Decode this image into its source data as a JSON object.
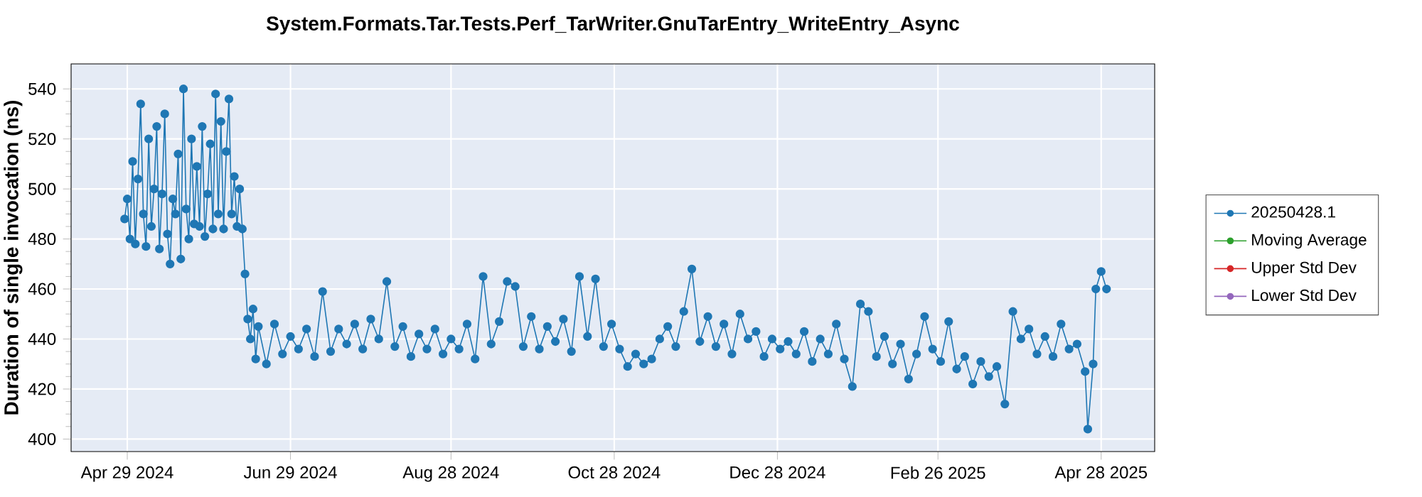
{
  "chart_data": {
    "type": "line",
    "title": "System.Formats.Tar.Tests.Perf_TarWriter.GnuTarEntry_WriteEntry_Async",
    "ylabel": "Duration of single invocation (ns)",
    "x": [
      "2024-04-28",
      "2024-04-29",
      "2024-04-30",
      "2024-05-01",
      "2024-05-02",
      "2024-05-03",
      "2024-05-04",
      "2024-05-05",
      "2024-05-06",
      "2024-05-07",
      "2024-05-08",
      "2024-05-09",
      "2024-05-10",
      "2024-05-11",
      "2024-05-12",
      "2024-05-13",
      "2024-05-14",
      "2024-05-15",
      "2024-05-16",
      "2024-05-17",
      "2024-05-18",
      "2024-05-19",
      "2024-05-20",
      "2024-05-21",
      "2024-05-22",
      "2024-05-23",
      "2024-05-24",
      "2024-05-25",
      "2024-05-26",
      "2024-05-27",
      "2024-05-28",
      "2024-05-29",
      "2024-05-30",
      "2024-05-31",
      "2024-06-01",
      "2024-06-02",
      "2024-06-03",
      "2024-06-04",
      "2024-06-05",
      "2024-06-06",
      "2024-06-07",
      "2024-06-08",
      "2024-06-09",
      "2024-06-10",
      "2024-06-11",
      "2024-06-12",
      "2024-06-13",
      "2024-06-14",
      "2024-06-15",
      "2024-06-16",
      "2024-06-17",
      "2024-06-20",
      "2024-06-23",
      "2024-06-26",
      "2024-06-29",
      "2024-07-02",
      "2024-07-05",
      "2024-07-08",
      "2024-07-11",
      "2024-07-14",
      "2024-07-17",
      "2024-07-20",
      "2024-07-23",
      "2024-07-26",
      "2024-07-29",
      "2024-08-01",
      "2024-08-04",
      "2024-08-07",
      "2024-08-10",
      "2024-08-13",
      "2024-08-16",
      "2024-08-19",
      "2024-08-22",
      "2024-08-25",
      "2024-08-28",
      "2024-08-31",
      "2024-09-03",
      "2024-09-06",
      "2024-09-09",
      "2024-09-12",
      "2024-09-15",
      "2024-09-18",
      "2024-09-21",
      "2024-09-24",
      "2024-09-27",
      "2024-09-30",
      "2024-10-03",
      "2024-10-06",
      "2024-10-09",
      "2024-10-12",
      "2024-10-15",
      "2024-10-18",
      "2024-10-21",
      "2024-10-24",
      "2024-10-27",
      "2024-10-30",
      "2024-11-02",
      "2024-11-05",
      "2024-11-08",
      "2024-11-11",
      "2024-11-14",
      "2024-11-17",
      "2024-11-20",
      "2024-11-23",
      "2024-11-26",
      "2024-11-29",
      "2024-12-02",
      "2024-12-05",
      "2024-12-08",
      "2024-12-11",
      "2024-12-14",
      "2024-12-17",
      "2024-12-20",
      "2024-12-23",
      "2024-12-26",
      "2024-12-29",
      "2025-01-01",
      "2025-01-04",
      "2025-01-07",
      "2025-01-10",
      "2025-01-13",
      "2025-01-16",
      "2025-01-19",
      "2025-01-22",
      "2025-01-25",
      "2025-01-28",
      "2025-01-31",
      "2025-02-03",
      "2025-02-06",
      "2025-02-09",
      "2025-02-12",
      "2025-02-15",
      "2025-02-18",
      "2025-02-21",
      "2025-02-24",
      "2025-02-27",
      "2025-03-02",
      "2025-03-05",
      "2025-03-08",
      "2025-03-11",
      "2025-03-14",
      "2025-03-17",
      "2025-03-20",
      "2025-03-23",
      "2025-03-26",
      "2025-03-29",
      "2025-04-01",
      "2025-04-04",
      "2025-04-07",
      "2025-04-10",
      "2025-04-13",
      "2025-04-16",
      "2025-04-19",
      "2025-04-22",
      "2025-04-23",
      "2025-04-25",
      "2025-04-26",
      "2025-04-28",
      "2025-04-30"
    ],
    "series": [
      {
        "name": "20250428.1",
        "color": "#1f77b4",
        "values": [
          488,
          496,
          480,
          511,
          478,
          504,
          534,
          490,
          477,
          520,
          485,
          500,
          525,
          476,
          498,
          530,
          482,
          470,
          496,
          490,
          514,
          472,
          540,
          492,
          480,
          520,
          486,
          509,
          485,
          525,
          481,
          498,
          518,
          484,
          538,
          490,
          527,
          484,
          515,
          536,
          490,
          505,
          485,
          500,
          484,
          466,
          448,
          440,
          452,
          432,
          445,
          430,
          446,
          434,
          441,
          436,
          444,
          433,
          459,
          435,
          444,
          438,
          446,
          436,
          448,
          440,
          463,
          437,
          445,
          433,
          442,
          436,
          444,
          434,
          440,
          436,
          446,
          432,
          465,
          438,
          447,
          463,
          461,
          437,
          449,
          436,
          445,
          439,
          448,
          435,
          465,
          441,
          464,
          437,
          446,
          436,
          429,
          434,
          430,
          432,
          440,
          445,
          437,
          451,
          468,
          439,
          449,
          437,
          446,
          434,
          450,
          440,
          443,
          433,
          440,
          436,
          439,
          434,
          443,
          431,
          440,
          434,
          446,
          432,
          421,
          454,
          451,
          433,
          441,
          430,
          438,
          424,
          434,
          449,
          436,
          431,
          447,
          428,
          433,
          422,
          431,
          425,
          429,
          414,
          451,
          440,
          444,
          434,
          441,
          433,
          446,
          436,
          438,
          427,
          404,
          430,
          460,
          467,
          460
        ]
      },
      {
        "name": "Moving Average",
        "color": "#2ca02c",
        "values": [
          null,
          null,
          null,
          null,
          null,
          null,
          null,
          null,
          null,
          null,
          null,
          null,
          null,
          null,
          null,
          null,
          null,
          null,
          null,
          null,
          null,
          null,
          null,
          null,
          null,
          null,
          null,
          null,
          null,
          null,
          null,
          null,
          null,
          null,
          null,
          null,
          null,
          null,
          null,
          null,
          null,
          null,
          null,
          null,
          null,
          null,
          null,
          null,
          null,
          null,
          null,
          null,
          null,
          null,
          null,
          null,
          null,
          null,
          null,
          null,
          null,
          null,
          null,
          null,
          null,
          null,
          null,
          null,
          null,
          null,
          null,
          null,
          null,
          null,
          null,
          null,
          null,
          null,
          null,
          null,
          null,
          null,
          null,
          null,
          null,
          null,
          null,
          null,
          null,
          null,
          null,
          null,
          null,
          null,
          null,
          null,
          null,
          null,
          null,
          null,
          null,
          null,
          null,
          null,
          null,
          null,
          null,
          null,
          null,
          null,
          null,
          null,
          null,
          null,
          null,
          null,
          null,
          null,
          null,
          null,
          null,
          null,
          null,
          null,
          null,
          null,
          null,
          null,
          null,
          null,
          null,
          null,
          null,
          null,
          null,
          null,
          null,
          null,
          null,
          null,
          null,
          null,
          null,
          null,
          null,
          null,
          null,
          null,
          null,
          null,
          null,
          null,
          null,
          null,
          null,
          null,
          null,
          null,
          null
        ]
      },
      {
        "name": "Upper Std Dev",
        "color": "#d62728",
        "values": [
          null,
          null,
          null,
          null,
          null,
          null,
          null,
          null,
          null,
          null,
          null,
          null,
          null,
          null,
          null,
          null,
          null,
          null,
          null,
          null,
          null,
          null,
          null,
          null,
          null,
          null,
          null,
          null,
          null,
          null,
          null,
          null,
          null,
          null,
          null,
          null,
          null,
          null,
          null,
          null,
          null,
          null,
          null,
          null,
          null,
          null,
          null,
          null,
          null,
          null,
          null,
          null,
          null,
          null,
          null,
          null,
          null,
          null,
          null,
          null,
          null,
          null,
          null,
          null,
          null,
          null,
          null,
          null,
          null,
          null,
          null,
          null,
          null,
          null,
          null,
          null,
          null,
          null,
          null,
          null,
          null,
          null,
          null,
          null,
          null,
          null,
          null,
          null,
          null,
          null,
          null,
          null,
          null,
          null,
          null,
          null,
          null,
          null,
          null,
          null,
          null,
          null,
          null,
          null,
          null,
          null,
          null,
          null,
          null,
          null,
          null,
          null,
          null,
          null,
          null,
          null,
          null,
          null,
          null,
          null,
          null,
          null,
          null,
          null,
          null,
          null,
          null,
          null,
          null,
          null,
          null,
          null,
          null,
          null,
          null,
          null,
          null,
          null,
          null,
          null,
          null,
          null,
          null,
          null,
          null,
          null,
          null,
          null,
          null,
          null,
          null,
          null,
          null,
          null,
          null,
          null,
          null,
          null,
          null
        ]
      },
      {
        "name": "Lower Std Dev",
        "color": "#9467bd",
        "values": [
          null,
          null,
          null,
          null,
          null,
          null,
          null,
          null,
          null,
          null,
          null,
          null,
          null,
          null,
          null,
          null,
          null,
          null,
          null,
          null,
          null,
          null,
          null,
          null,
          null,
          null,
          null,
          null,
          null,
          null,
          null,
          null,
          null,
          null,
          null,
          null,
          null,
          null,
          null,
          null,
          null,
          null,
          null,
          null,
          null,
          null,
          null,
          null,
          null,
          null,
          null,
          null,
          null,
          null,
          null,
          null,
          null,
          null,
          null,
          null,
          null,
          null,
          null,
          null,
          null,
          null,
          null,
          null,
          null,
          null,
          null,
          null,
          null,
          null,
          null,
          null,
          null,
          null,
          null,
          null,
          null,
          null,
          null,
          null,
          null,
          null,
          null,
          null,
          null,
          null,
          null,
          null,
          null,
          null,
          null,
          null,
          null,
          null,
          null,
          null,
          null,
          null,
          null,
          null,
          null,
          null,
          null,
          null,
          null,
          null,
          null,
          null,
          null,
          null,
          null,
          null,
          null,
          null,
          null,
          null,
          null,
          null,
          null,
          null,
          null,
          null,
          null,
          null,
          null,
          null,
          null,
          null,
          null,
          null,
          null,
          null,
          null,
          null,
          null,
          null,
          null,
          null,
          null,
          null,
          null,
          null,
          null,
          null,
          null,
          null,
          null,
          null,
          null,
          null,
          null,
          null,
          null,
          null,
          null
        ]
      }
    ],
    "xlim": [
      "2024-04-08",
      "2025-05-18"
    ],
    "xticks": [
      {
        "value": "2024-04-29",
        "label": "Apr 29 2024"
      },
      {
        "value": "2024-06-29",
        "label": "Jun 29 2024"
      },
      {
        "value": "2024-08-28",
        "label": "Aug 28 2024"
      },
      {
        "value": "2024-10-28",
        "label": "Oct 28 2024"
      },
      {
        "value": "2024-12-28",
        "label": "Dec 28 2024"
      },
      {
        "value": "2025-02-26",
        "label": "Feb 26 2025"
      },
      {
        "value": "2025-04-28",
        "label": "Apr 28 2025"
      }
    ],
    "ylim": [
      395,
      550
    ],
    "yticks": [
      400,
      420,
      440,
      460,
      480,
      500,
      520,
      540
    ],
    "grid": true,
    "legend": "right",
    "marker": "circle",
    "line_style": "solid"
  }
}
